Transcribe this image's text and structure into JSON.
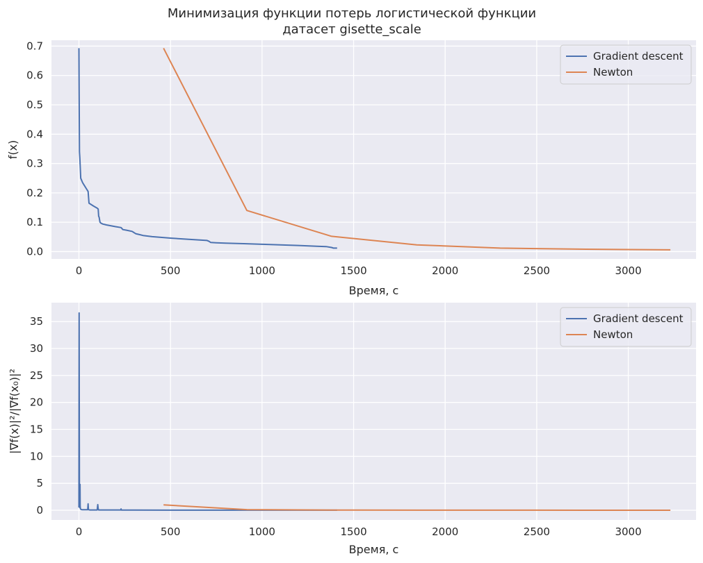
{
  "figure": {
    "title_line1": "Минимизация функции потерь логистической функции",
    "title_line2": "датасет gisette_scale"
  },
  "colors": {
    "background": "#ffffff",
    "axes_face": "#eaeaf2",
    "grid": "#ffffff",
    "gradient_descent": "#4c72b0",
    "newton": "#dd8452"
  },
  "chart_data": [
    {
      "type": "line",
      "xlabel": "Время, с",
      "ylabel": "f(x)",
      "xlim": [
        -150,
        3370
      ],
      "ylim": [
        -0.025,
        0.72
      ],
      "xticks": [
        0,
        500,
        1000,
        1500,
        2000,
        2500,
        3000
      ],
      "yticks": [
        0.0,
        0.1,
        0.2,
        0.3,
        0.4,
        0.5,
        0.6,
        0.7
      ],
      "ytick_labels": [
        "0.0",
        "0.1",
        "0.2",
        "0.3",
        "0.4",
        "0.5",
        "0.6",
        "0.7"
      ],
      "grid": true,
      "legend_position": "upper-right",
      "series": [
        {
          "name": "Gradient descent",
          "x": [
            0,
            1,
            3,
            5,
            10,
            20,
            30,
            40,
            50,
            55,
            60,
            80,
            100,
            105,
            108,
            110,
            115,
            120,
            130,
            150,
            200,
            230,
            240,
            260,
            290,
            300,
            310,
            330,
            350,
            400,
            500,
            600,
            700,
            710,
            720,
            750,
            800,
            900,
            1000,
            1100,
            1200,
            1300,
            1350,
            1380,
            1390,
            1410
          ],
          "y": [
            0.693,
            0.55,
            0.34,
            0.32,
            0.25,
            0.235,
            0.225,
            0.215,
            0.205,
            0.165,
            0.163,
            0.155,
            0.148,
            0.145,
            0.12,
            0.118,
            0.1,
            0.097,
            0.094,
            0.091,
            0.085,
            0.082,
            0.075,
            0.073,
            0.069,
            0.065,
            0.061,
            0.058,
            0.055,
            0.051,
            0.046,
            0.042,
            0.038,
            0.035,
            0.031,
            0.03,
            0.029,
            0.027,
            0.025,
            0.023,
            0.021,
            0.018,
            0.017,
            0.014,
            0.012,
            0.012
          ]
        },
        {
          "name": "Newton",
          "x": [
            462,
            917,
            1380,
            1845,
            2300,
            2770,
            3230
          ],
          "y": [
            0.693,
            0.14,
            0.052,
            0.023,
            0.012,
            0.008,
            0.006
          ]
        }
      ]
    },
    {
      "type": "line",
      "xlabel": "Время, с",
      "ylabel_text": "|∇f(x)|²/|∇f(x₀)|²",
      "xlim": [
        -150,
        3370
      ],
      "ylim": [
        -1.8,
        38.5
      ],
      "xticks": [
        0,
        500,
        1000,
        1500,
        2000,
        2500,
        3000
      ],
      "yticks": [
        0,
        5,
        10,
        15,
        20,
        25,
        30,
        35
      ],
      "ytick_labels": [
        "0",
        "5",
        "10",
        "15",
        "20",
        "25",
        "30",
        "35"
      ],
      "grid": true,
      "legend_position": "upper-right",
      "series": [
        {
          "name": "Gradient descent",
          "x": [
            0,
            1,
            2,
            3,
            4,
            5,
            6,
            7,
            8,
            10,
            12,
            15,
            20,
            30,
            48,
            50,
            52,
            60,
            100,
            103,
            105,
            108,
            120,
            200,
            228,
            230,
            232,
            260,
            300,
            500,
            800,
            1000,
            1200,
            1410
          ],
          "y": [
            0.5,
            36.6,
            20.0,
            1.5,
            4.6,
            0.5,
            4.8,
            0.8,
            0.3,
            0.2,
            0.15,
            0.12,
            0.1,
            0.1,
            0.1,
            1.2,
            0.1,
            0.05,
            0.05,
            1.05,
            0.3,
            0.05,
            0.05,
            0.05,
            0.05,
            0.25,
            0.03,
            0.03,
            0.03,
            0.02,
            0.02,
            0.02,
            0.02,
            0.02
          ]
        },
        {
          "name": "Newton",
          "x": [
            462,
            917,
            1380,
            1845,
            2300,
            2770,
            3230
          ],
          "y": [
            1.0,
            0.12,
            0.04,
            0.02,
            0.01,
            0.005,
            0.003
          ]
        }
      ]
    }
  ]
}
